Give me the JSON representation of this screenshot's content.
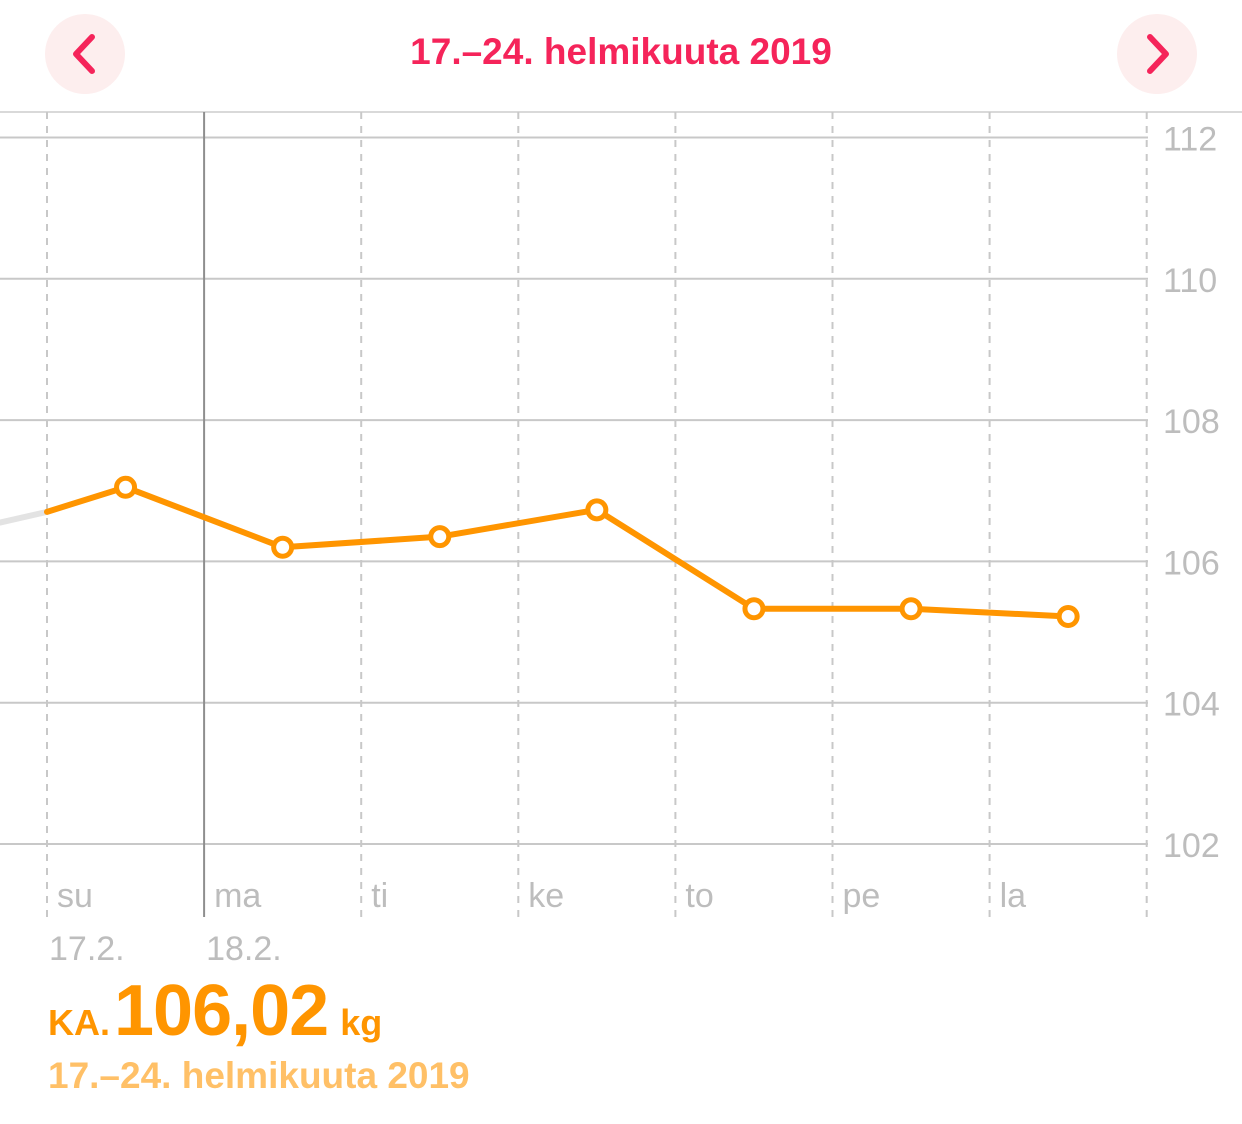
{
  "header": {
    "title": "17.–24. helmikuuta 2019",
    "prev_icon": "chevron-left-icon",
    "next_icon": "chevron-right-icon"
  },
  "colors": {
    "accent": "#f5245a",
    "line": "#ff9500",
    "line_faded": "#e3e3e3",
    "summary_range": "#ffc067"
  },
  "chart_data": {
    "type": "line",
    "x": [
      "su",
      "ma",
      "ti",
      "ke",
      "to",
      "pe",
      "la"
    ],
    "dates": [
      "17.2.",
      "18.2."
    ],
    "series": [
      {
        "values": [
          107.05,
          106.2,
          106.35,
          106.73,
          105.33,
          105.33,
          105.22
        ]
      }
    ],
    "previous_value": 106.55,
    "yticks": [
      112,
      110,
      108,
      106,
      104,
      102
    ],
    "ylim": [
      102,
      112
    ],
    "y_axis_side": "right",
    "grid": true
  },
  "summary": {
    "prefix": "KA.",
    "value": "106,02",
    "unit": "kg",
    "range": "17.–24. helmikuuta 2019"
  }
}
